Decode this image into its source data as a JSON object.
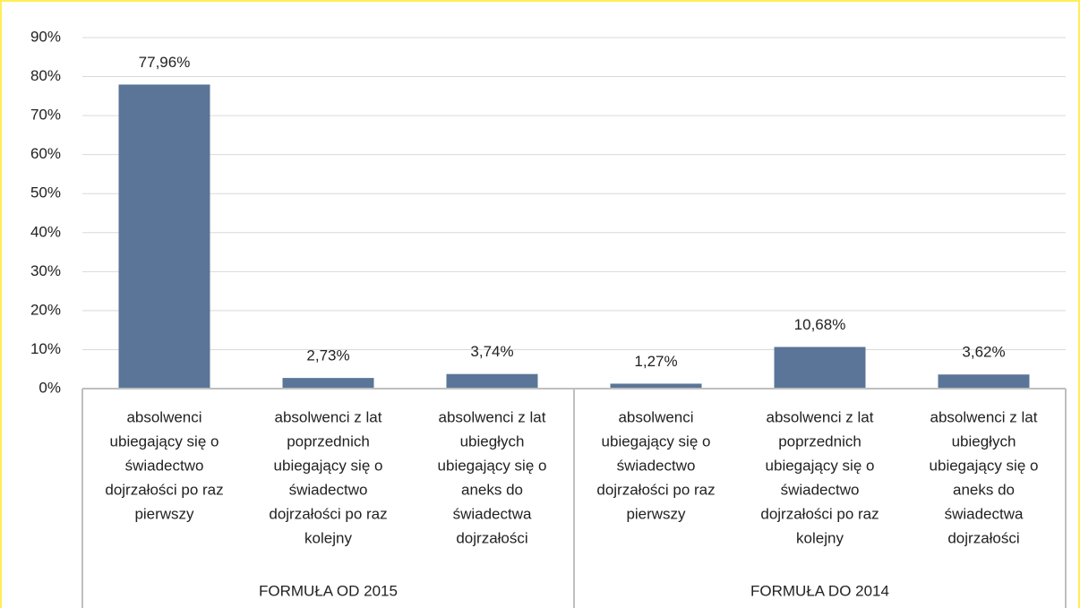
{
  "chart_data": {
    "type": "bar",
    "categories": [
      [
        "absolwenci",
        "ubiegający się o",
        "świadectwo",
        "dojrzałości po raz",
        "pierwszy"
      ],
      [
        "absolwenci z lat",
        "poprzednich",
        "ubiegający się o",
        "świadectwo",
        "dojrzałości po raz",
        "kolejny"
      ],
      [
        "absolwenci z lat",
        "ubiegłych",
        "ubiegający się o",
        "aneks do",
        "świadectwa",
        "dojrzałości"
      ],
      [
        "absolwenci",
        "ubiegający się o",
        "świadectwo",
        "dojrzałości po raz",
        "pierwszy"
      ],
      [
        "absolwenci z lat",
        "poprzednich",
        "ubiegający się o",
        "świadectwo",
        "dojrzałości po raz",
        "kolejny"
      ],
      [
        "absolwenci z lat",
        "ubiegłych",
        "ubiegający się o",
        "aneks do",
        "świadectwa",
        "dojrzałości"
      ]
    ],
    "groups": [
      "FORMUŁA OD 2015",
      "FORMUŁA DO 2014"
    ],
    "values": [
      77.96,
      2.73,
      3.74,
      1.27,
      10.68,
      3.62
    ],
    "value_labels": [
      "77,96%",
      "2,73%",
      "3,74%",
      "1,27%",
      "10,68%",
      "3,62%"
    ],
    "color": "#5a7597",
    "ylim": [
      0,
      90
    ],
    "yticks": [
      {
        "value": 0,
        "label": "0%"
      },
      {
        "value": 10,
        "label": "10%"
      },
      {
        "value": 20,
        "label": "20%"
      },
      {
        "value": 30,
        "label": "30%"
      },
      {
        "value": 40,
        "label": "40%"
      },
      {
        "value": 50,
        "label": "50%"
      },
      {
        "value": 60,
        "label": "60%"
      },
      {
        "value": 70,
        "label": "70%"
      },
      {
        "value": 80,
        "label": "80%"
      },
      {
        "value": 90,
        "label": "90%"
      }
    ],
    "grid": true
  }
}
